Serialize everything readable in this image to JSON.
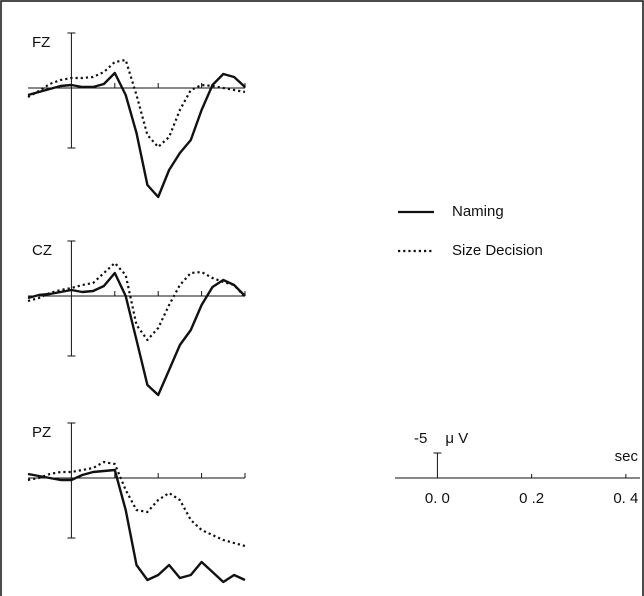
{
  "chart_data": [
    {
      "type": "line",
      "title": "FZ",
      "y_inverted": true,
      "x": [
        -0.1,
        -0.075,
        -0.05,
        -0.025,
        0,
        0.025,
        0.05,
        0.075,
        0.1,
        0.125,
        0.15,
        0.175,
        0.2,
        0.225,
        0.25,
        0.275,
        0.3,
        0.325,
        0.35,
        0.375,
        0.4
      ],
      "xlim": [
        -0.1,
        0.4
      ],
      "xticks": [
        0.1,
        0.2,
        0.3,
        0.4
      ],
      "ylim": [
        -12,
        24
      ],
      "yticks": [
        -11,
        12
      ],
      "legend": "right",
      "series": [
        {
          "name": "Naming",
          "color": "#111111",
          "dash": "solid",
          "values": [
            1.4,
            0.8,
            0.2,
            -0.4,
            -0.6,
            -0.2,
            -0.2,
            -0.8,
            -3,
            1.4,
            9,
            19.4,
            21.8,
            16.4,
            13,
            10.4,
            4.4,
            -0.6,
            -2.8,
            -2.2,
            -0.2
          ]
        },
        {
          "name": "Size Decision",
          "color": "#111111",
          "dash": "dotted",
          "values": [
            1.8,
            0.6,
            -0.8,
            -1.6,
            -2,
            -2,
            -2.2,
            -3.2,
            -5.2,
            -5.6,
            1.4,
            9.4,
            11.8,
            9.8,
            4.4,
            0.4,
            -0.6,
            -0.4,
            0,
            0.4,
            0.8
          ]
        }
      ]
    },
    {
      "type": "line",
      "title": "CZ",
      "y_inverted": true,
      "x": [
        -0.1,
        -0.075,
        -0.05,
        -0.025,
        0,
        0.025,
        0.05,
        0.075,
        0.1,
        0.125,
        0.15,
        0.175,
        0.2,
        0.225,
        0.25,
        0.275,
        0.3,
        0.325,
        0.35,
        0.375,
        0.4
      ],
      "xlim": [
        -0.1,
        0.4
      ],
      "xticks": [
        0.1,
        0.2,
        0.3,
        0.4
      ],
      "ylim": [
        -12,
        24
      ],
      "yticks": [
        -11,
        12
      ],
      "series": [
        {
          "color": "#111111",
          "dash": "solid",
          "values": [
            0.4,
            -0.2,
            -0.4,
            -0.8,
            -1.2,
            -0.8,
            -1,
            -2,
            -4.6,
            0,
            8.8,
            17.8,
            19.8,
            14.8,
            9.8,
            6.8,
            1.8,
            -1.8,
            -3.2,
            -2.2,
            0
          ]
        },
        {
          "color": "#111111",
          "dash": "dotted",
          "values": [
            1,
            0.4,
            -0.6,
            -1.2,
            -1.6,
            -2.2,
            -2.6,
            -4.6,
            -6.6,
            -4.2,
            5.8,
            8.8,
            6.4,
            1.8,
            -2.2,
            -4.6,
            -4.8,
            -3.6,
            -2.8,
            -2.2,
            0.2
          ]
        }
      ]
    },
    {
      "type": "line",
      "title": "PZ",
      "y_inverted": true,
      "x": [
        -0.1,
        -0.075,
        -0.05,
        -0.025,
        0,
        0.025,
        0.05,
        0.075,
        0.1,
        0.125,
        0.15,
        0.175,
        0.2,
        0.225,
        0.25,
        0.275,
        0.3,
        0.325,
        0.35,
        0.375,
        0.4
      ],
      "xlim": [
        -0.1,
        0.4
      ],
      "xticks": [
        0.1,
        0.2,
        0.3,
        0.4
      ],
      "ylim": [
        -12,
        24
      ],
      "yticks": [
        -11,
        12
      ],
      "series": [
        {
          "color": "#111111",
          "dash": "solid",
          "values": [
            -0.8,
            -0.4,
            0,
            0.4,
            0.4,
            -0.6,
            -1.2,
            -1.4,
            -1.6,
            6.4,
            17.4,
            20.4,
            19.4,
            17.4,
            20,
            19.4,
            16.8,
            18.8,
            20.8,
            19.4,
            20.4
          ]
        },
        {
          "color": "#111111",
          "dash": "dotted",
          "values": [
            0.4,
            0,
            -0.8,
            -1.2,
            -1.2,
            -1.6,
            -2,
            -3.2,
            -2.8,
            2.4,
            6.4,
            6.8,
            4.4,
            3,
            4.4,
            8.4,
            10.4,
            11.4,
            12.4,
            13,
            13.6
          ]
        }
      ]
    },
    {
      "type": "scale",
      "xlabel": "sec",
      "ylabel": "μ V",
      "xlim": [
        -0.09,
        0.43
      ],
      "xticks": [
        {
          "value": 0,
          "label": "0. 0"
        },
        {
          "value": 0.2,
          "label": "0 .2"
        },
        {
          "value": 0.4,
          "label": "0. 4"
        }
      ],
      "ylim": [
        -5,
        0
      ],
      "yticks": [
        {
          "value": -5,
          "label": "-5"
        }
      ]
    }
  ]
}
